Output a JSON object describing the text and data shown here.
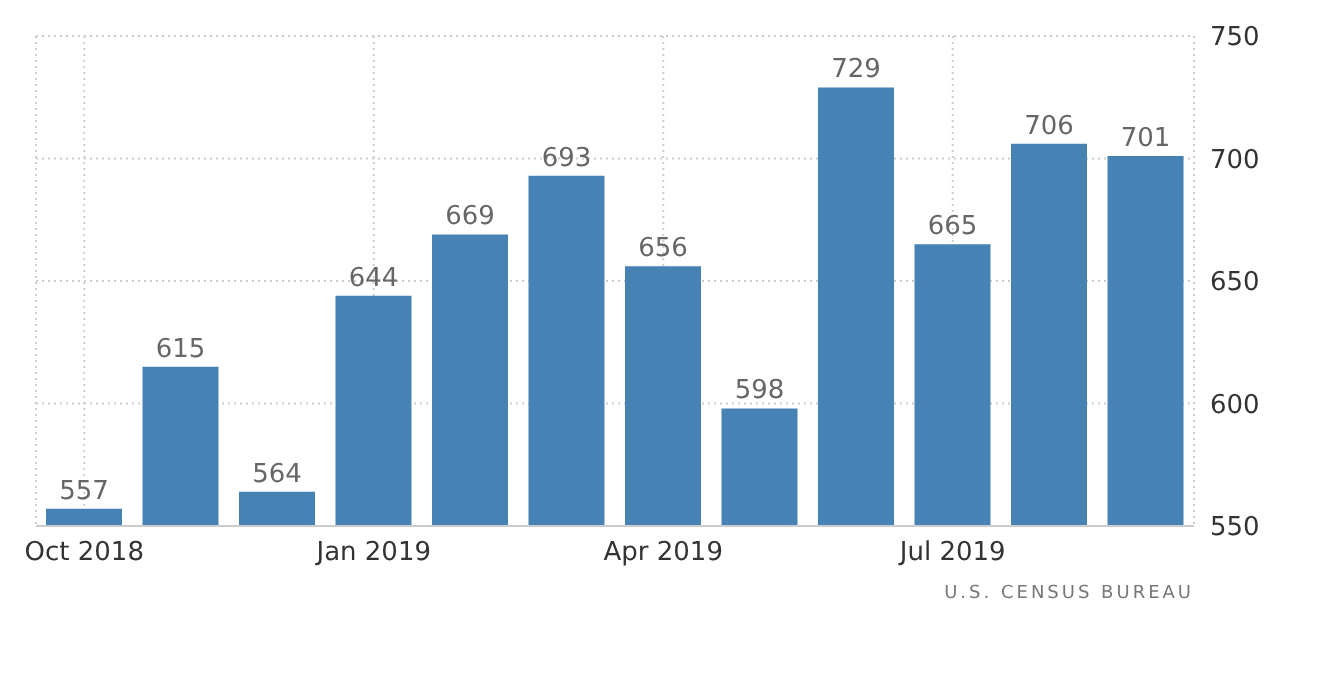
{
  "chart_data": {
    "type": "bar",
    "categories": [
      "Oct 2018",
      null,
      null,
      "Jan 2019",
      null,
      null,
      "Apr 2019",
      null,
      null,
      "Jul 2019",
      null,
      null
    ],
    "values": [
      557,
      615,
      564,
      644,
      669,
      693,
      656,
      598,
      729,
      665,
      706,
      701
    ],
    "color": "#4682b4",
    "ylim": [
      550,
      750
    ],
    "yticks": [
      550,
      600,
      650,
      700,
      750
    ],
    "grid": true,
    "data_labels": true,
    "annotations": [
      "U.S. CENSUS BUREAU"
    ]
  }
}
